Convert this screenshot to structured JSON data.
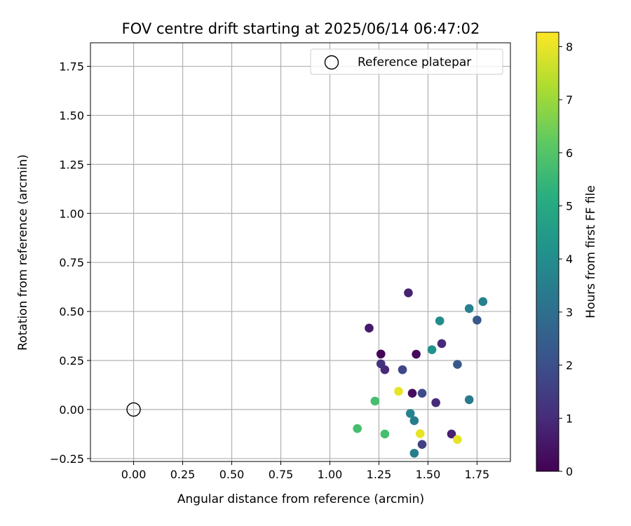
{
  "chart_data": {
    "type": "scatter",
    "title": "FOV centre drift starting at 2025/06/14 06:47:02",
    "xlabel": "Angular distance from reference (arcmin)",
    "ylabel": "Rotation from reference (arcmin)",
    "xlim": [
      -0.22,
      1.92
    ],
    "ylim": [
      -0.265,
      1.87
    ],
    "xticks": [
      0.0,
      0.25,
      0.5,
      0.75,
      1.0,
      1.25,
      1.5,
      1.75
    ],
    "xtick_labels": [
      "0.00",
      "0.25",
      "0.50",
      "0.75",
      "1.00",
      "1.25",
      "1.50",
      "1.75"
    ],
    "yticks": [
      -0.25,
      0.0,
      0.25,
      0.5,
      0.75,
      1.0,
      1.25,
      1.5,
      1.75
    ],
    "ytick_labels": [
      "−0.25",
      "0.00",
      "0.25",
      "0.50",
      "0.75",
      "1.00",
      "1.25",
      "1.50",
      "1.75"
    ],
    "grid": true,
    "legend": {
      "entry": "Reference platepar",
      "position": "upper-right"
    },
    "reference_point": {
      "x": 0.0,
      "y": 0.0
    },
    "colorbar": {
      "label": "Hours from first FF file",
      "colormap": "viridis",
      "range": [
        0,
        8.27
      ],
      "ticks": [
        0,
        1,
        2,
        3,
        4,
        5,
        6,
        7,
        8
      ],
      "tick_labels": [
        "0",
        "1",
        "2",
        "3",
        "4",
        "5",
        "6",
        "7",
        "8"
      ]
    },
    "points": [
      {
        "x": 1.4,
        "y": 0.595,
        "hours": 0.8
      },
      {
        "x": 1.2,
        "y": 0.415,
        "hours": 0.6
      },
      {
        "x": 1.26,
        "y": 0.283,
        "hours": 0.1
      },
      {
        "x": 1.44,
        "y": 0.282,
        "hours": 0.2
      },
      {
        "x": 1.26,
        "y": 0.233,
        "hours": 1.2
      },
      {
        "x": 1.28,
        "y": 0.203,
        "hours": 1.0
      },
      {
        "x": 1.37,
        "y": 0.203,
        "hours": 1.8
      },
      {
        "x": 1.42,
        "y": 0.083,
        "hours": 0.3
      },
      {
        "x": 1.35,
        "y": 0.093,
        "hours": 8.0
      },
      {
        "x": 1.47,
        "y": 0.083,
        "hours": 1.9
      },
      {
        "x": 1.57,
        "y": 0.336,
        "hours": 1.0
      },
      {
        "x": 1.54,
        "y": 0.035,
        "hours": 1.0
      },
      {
        "x": 1.23,
        "y": 0.043,
        "hours": 5.8
      },
      {
        "x": 1.52,
        "y": 0.305,
        "hours": 4.2
      },
      {
        "x": 1.56,
        "y": 0.452,
        "hours": 4.0
      },
      {
        "x": 1.65,
        "y": 0.23,
        "hours": 2.3
      },
      {
        "x": 1.71,
        "y": 0.515,
        "hours": 3.6
      },
      {
        "x": 1.75,
        "y": 0.456,
        "hours": 2.3
      },
      {
        "x": 1.78,
        "y": 0.55,
        "hours": 3.6
      },
      {
        "x": 1.71,
        "y": 0.05,
        "hours": 3.4
      },
      {
        "x": 1.41,
        "y": -0.02,
        "hours": 3.7
      },
      {
        "x": 1.43,
        "y": -0.057,
        "hours": 3.5
      },
      {
        "x": 1.14,
        "y": -0.097,
        "hours": 5.8
      },
      {
        "x": 1.28,
        "y": -0.125,
        "hours": 5.8
      },
      {
        "x": 1.46,
        "y": -0.123,
        "hours": 8.0
      },
      {
        "x": 1.62,
        "y": -0.125,
        "hours": 0.8
      },
      {
        "x": 1.65,
        "y": -0.153,
        "hours": 8.0
      },
      {
        "x": 1.47,
        "y": -0.178,
        "hours": 1.6
      },
      {
        "x": 1.43,
        "y": -0.223,
        "hours": 3.5
      }
    ]
  }
}
